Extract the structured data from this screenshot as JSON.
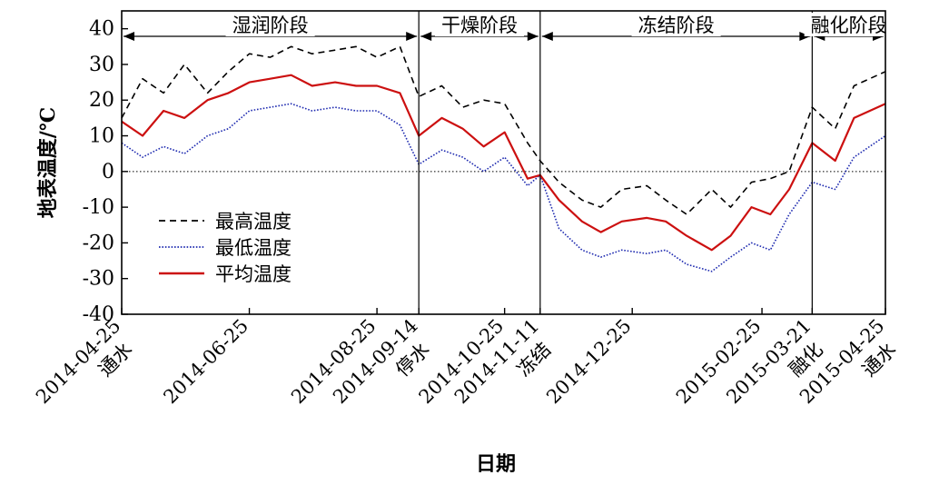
{
  "chart_data": {
    "type": "line",
    "xlabel": "日期",
    "ylabel": "地表温度/℃",
    "ylim": [
      -40,
      45
    ],
    "yticks": [
      -40,
      -30,
      -20,
      -10,
      0,
      10,
      20,
      30,
      40
    ],
    "xlim": [
      "2014-04-25",
      "2015-04-25"
    ],
    "xticks": [
      {
        "date": "2014-04-25",
        "label": "2014-04-25",
        "event": "通水"
      },
      {
        "date": "2014-06-25",
        "label": "2014-06-25",
        "event": ""
      },
      {
        "date": "2014-08-25",
        "label": "2014-08-25",
        "event": ""
      },
      {
        "date": "2014-09-14",
        "label": "2014-09-14",
        "event": "停水"
      },
      {
        "date": "2014-10-25",
        "label": "2014-10-25",
        "event": ""
      },
      {
        "date": "2014-11-11",
        "label": "2014-11-11",
        "event": "冻结"
      },
      {
        "date": "2014-12-25",
        "label": "2014-12-25",
        "event": ""
      },
      {
        "date": "2015-02-25",
        "label": "2015-02-25",
        "event": ""
      },
      {
        "date": "2015-03-21",
        "label": "2015-03-21",
        "event": "融化"
      },
      {
        "date": "2015-04-25",
        "label": "2015-04-25",
        "event": "通水"
      }
    ],
    "phases": [
      {
        "label": "湿润阶段",
        "start": "2014-04-25",
        "end": "2014-09-14"
      },
      {
        "label": "干燥阶段",
        "start": "2014-09-14",
        "end": "2014-11-11"
      },
      {
        "label": "冻结阶段",
        "start": "2014-11-11",
        "end": "2015-03-21"
      },
      {
        "label": "融化阶段",
        "start": "2015-03-21",
        "end": "2015-04-25"
      }
    ],
    "dividers": [
      "2014-09-14",
      "2014-11-11",
      "2015-03-21"
    ],
    "zero_line": true,
    "legend_position": "lower-left",
    "x": [
      "2014-04-25",
      "2014-05-05",
      "2014-05-15",
      "2014-05-25",
      "2014-06-05",
      "2014-06-15",
      "2014-06-25",
      "2014-07-05",
      "2014-07-15",
      "2014-07-25",
      "2014-08-05",
      "2014-08-15",
      "2014-08-25",
      "2014-09-05",
      "2014-09-14",
      "2014-09-25",
      "2014-10-05",
      "2014-10-15",
      "2014-10-25",
      "2014-11-05",
      "2014-11-11",
      "2014-11-20",
      "2014-12-01",
      "2014-12-10",
      "2014-12-20",
      "2015-01-01",
      "2015-01-10",
      "2015-01-20",
      "2015-02-01",
      "2015-02-10",
      "2015-02-20",
      "2015-03-01",
      "2015-03-10",
      "2015-03-21",
      "2015-04-01",
      "2015-04-10",
      "2015-04-25"
    ],
    "series": [
      {
        "name": "最高温度",
        "color": "#000000",
        "style": "dashed",
        "values": [
          15,
          26,
          22,
          30,
          22,
          28,
          33,
          32,
          35,
          33,
          34,
          35,
          32,
          35,
          21,
          24,
          18,
          20,
          19,
          8,
          3,
          -3,
          -8,
          -10,
          -5,
          -4,
          -8,
          -12,
          -5,
          -10,
          -3,
          -2,
          0,
          18,
          12,
          24,
          28
        ]
      },
      {
        "name": "最低温度",
        "color": "#1f2bb0",
        "style": "dotted",
        "values": [
          8,
          4,
          7,
          5,
          10,
          12,
          17,
          18,
          19,
          17,
          18,
          17,
          17,
          13,
          2,
          6,
          4,
          0,
          4,
          -4,
          -1,
          -16,
          -22,
          -24,
          -22,
          -23,
          -22,
          -26,
          -28,
          -24,
          -20,
          -22,
          -12,
          -3,
          -5,
          4,
          10
        ]
      },
      {
        "name": "平均温度",
        "color": "#cc1010",
        "style": "solid",
        "values": [
          14,
          10,
          17,
          15,
          20,
          22,
          25,
          26,
          27,
          24,
          25,
          24,
          24,
          22,
          10,
          15,
          12,
          7,
          11,
          -2,
          -1,
          -8,
          -14,
          -17,
          -14,
          -13,
          -14,
          -18,
          -22,
          -18,
          -10,
          -12,
          -5,
          8,
          3,
          15,
          19
        ]
      }
    ]
  }
}
